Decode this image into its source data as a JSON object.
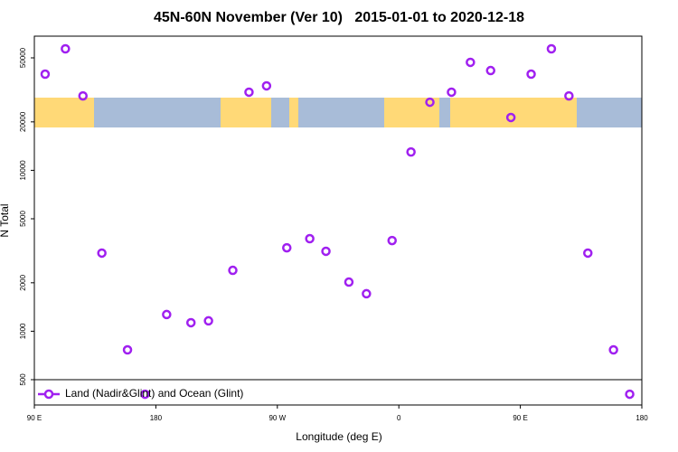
{
  "chart_data": {
    "type": "scatter",
    "title": "45N-60N November (Ver 10)   2015-01-01 to 2020-12-18",
    "x_label": "Longitude (deg E)",
    "y_label": "N Total",
    "xlim": [
      90,
      540
    ],
    "xticks": [
      {
        "value": 90,
        "label": "90 E"
      },
      180,
      {
        "value": 270,
        "label": "90 W"
      },
      {
        "value": 360,
        "label": "0"
      },
      {
        "value": 450,
        "label": "90 E"
      },
      {
        "value": 540,
        "label": "180"
      }
    ],
    "ylim": [
      348,
      68200
    ],
    "yticks": [
      500,
      1000,
      2000,
      5000,
      10000,
      20000,
      50000
    ],
    "log_y": true,
    "legend": "bottom-left",
    "series": [
      {
        "name": "Land (Nadir&Glint) and Ocean (Glint)",
        "color": "#a020f0",
        "x": [
          98,
          113,
          126,
          140,
          159,
          172,
          188,
          206,
          219,
          237,
          249,
          262,
          277,
          294,
          306,
          323,
          336,
          355,
          369,
          383,
          399,
          413,
          428,
          443,
          458,
          473,
          486,
          500,
          519,
          531
        ],
        "values": [
          39600,
          56900,
          29000,
          3060,
          766,
          406,
          1270,
          1130,
          1160,
          2390,
          30600,
          33500,
          3300,
          3760,
          3140,
          2020,
          1710,
          3660,
          13000,
          26500,
          30600,
          46900,
          41700,
          21300,
          39600,
          56900,
          29000,
          3060,
          766,
          406
        ]
      }
    ]
  }
}
